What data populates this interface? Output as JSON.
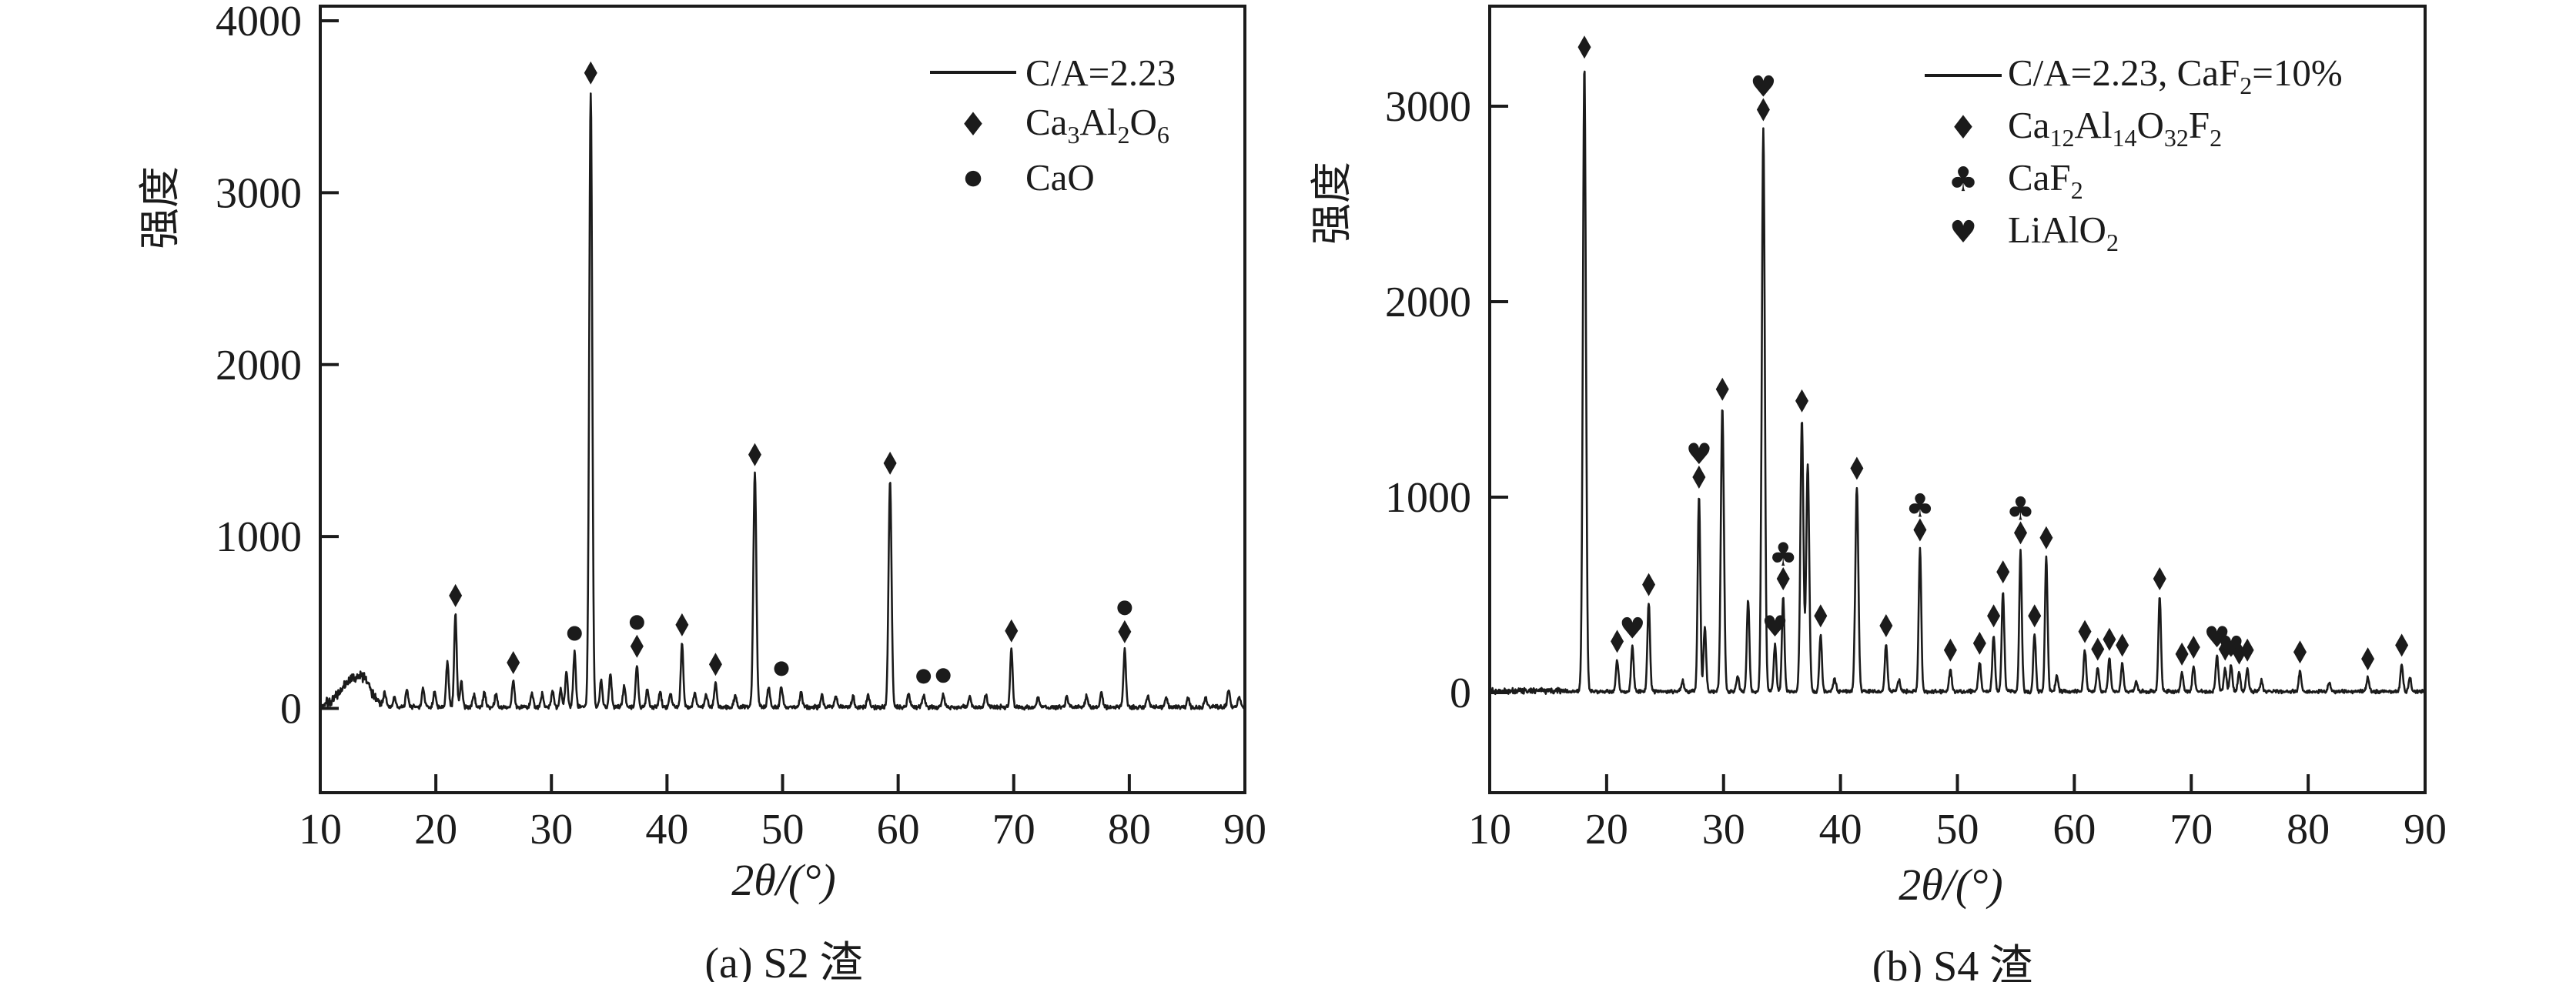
{
  "figure": {
    "background": "#ffffff",
    "ink_color": "#1b1b1b",
    "description": "Two XRD diffraction patterns side by side",
    "peaks_format": "[two_theta_deg, intensity, marker_letters(optional, bottom-to-top: d=diamond, c=circle, u=club, h=heart)]"
  },
  "chart_data": [
    {
      "type": "line",
      "title": "(a) S2 渣",
      "xlabel": "2θ/(°)",
      "ylabel": "强度",
      "xlim": [
        10,
        90
      ],
      "ylim": [
        -490,
        4085
      ],
      "xticks": [
        10,
        20,
        30,
        40,
        50,
        60,
        70,
        80,
        90
      ],
      "yticks": [
        0,
        1000,
        2000,
        3000,
        4000
      ],
      "grid": false,
      "legend_position": "upper right",
      "legend": [
        {
          "symbol": "line",
          "label": "C/A=2.23",
          "label_parts": [
            {
              "t": "C/A=2.23"
            }
          ]
        },
        {
          "symbol": "diamond",
          "label": "Ca₃Al₂O₆",
          "label_parts": [
            {
              "t": "Ca"
            },
            {
              "t": "3",
              "sub": true
            },
            {
              "t": "Al"
            },
            {
              "t": "2",
              "sub": true
            },
            {
              "t": "O"
            },
            {
              "t": "6",
              "sub": true
            }
          ]
        },
        {
          "symbol": "circle",
          "label": "CaO",
          "label_parts": [
            {
              "t": "CaO"
            }
          ]
        }
      ],
      "noise_amplitude": 24,
      "noise_boost": {
        "from": 10.4,
        "to": 15.6,
        "factor": 2.4
      },
      "humps": [
        {
          "x": 12.9,
          "h": 140,
          "w": 1.1
        },
        {
          "x": 13.8,
          "h": 60,
          "w": 0.5
        }
      ],
      "peaks": [
        [
          15.6,
          70
        ],
        [
          16.4,
          60
        ],
        [
          17.5,
          100
        ],
        [
          18.9,
          110
        ],
        [
          19.9,
          90
        ],
        [
          21.0,
          260
        ],
        [
          21.7,
          540,
          "d"
        ],
        [
          22.2,
          150
        ],
        [
          23.3,
          70
        ],
        [
          24.2,
          90
        ],
        [
          25.2,
          75
        ],
        [
          26.7,
          150,
          "d"
        ],
        [
          28.3,
          85
        ],
        [
          29.2,
          75
        ],
        [
          30.1,
          90
        ],
        [
          30.8,
          100
        ],
        [
          31.3,
          200
        ],
        [
          32.0,
          320,
          "c"
        ],
        [
          33.4,
          3580,
          "d"
        ],
        [
          34.3,
          160
        ],
        [
          35.1,
          190
        ],
        [
          36.3,
          120
        ],
        [
          37.4,
          245,
          "dc"
        ],
        [
          38.3,
          100
        ],
        [
          39.4,
          90
        ],
        [
          40.3,
          80
        ],
        [
          41.3,
          370,
          "d"
        ],
        [
          42.4,
          80
        ],
        [
          43.4,
          70
        ],
        [
          44.2,
          140,
          "d"
        ],
        [
          45.9,
          70
        ],
        [
          47.6,
          1360,
          "d"
        ],
        [
          48.8,
          120
        ],
        [
          49.9,
          115,
          "c"
        ],
        [
          51.6,
          85
        ],
        [
          53.4,
          70
        ],
        [
          54.6,
          65
        ],
        [
          56.1,
          60
        ],
        [
          57.4,
          70
        ],
        [
          59.3,
          1310,
          "d"
        ],
        [
          60.9,
          80
        ],
        [
          62.2,
          70,
          "c"
        ],
        [
          63.9,
          75,
          "c"
        ],
        [
          66.2,
          60
        ],
        [
          67.6,
          70
        ],
        [
          69.8,
          335,
          "d"
        ],
        [
          72.1,
          60
        ],
        [
          74.6,
          60
        ],
        [
          76.3,
          65
        ],
        [
          77.6,
          90
        ],
        [
          79.6,
          330,
          "dc"
        ],
        [
          81.6,
          60
        ],
        [
          83.2,
          55
        ],
        [
          85.1,
          55
        ],
        [
          86.6,
          55
        ],
        [
          88.6,
          110
        ],
        [
          89.5,
          60
        ]
      ]
    },
    {
      "type": "line",
      "title": "(b) S4 渣",
      "xlabel": "2θ/(°)",
      "ylabel": "强度",
      "xlim": [
        10,
        90
      ],
      "ylim": [
        -512,
        3512
      ],
      "xticks": [
        10,
        20,
        30,
        40,
        50,
        60,
        70,
        80,
        90
      ],
      "yticks": [
        0,
        1000,
        2000,
        3000
      ],
      "grid": false,
      "legend_position": "upper right",
      "legend": [
        {
          "symbol": "line",
          "label": "C/A=2.23, CaF₂=10%",
          "label_parts": [
            {
              "t": "C/A=2.23, CaF"
            },
            {
              "t": "2",
              "sub": true
            },
            {
              "t": "=10%"
            }
          ]
        },
        {
          "symbol": "diamond",
          "label": "Ca₁₂Al₁₄O₃₂F₂",
          "label_parts": [
            {
              "t": "Ca"
            },
            {
              "t": "12",
              "sub": true
            },
            {
              "t": "Al"
            },
            {
              "t": "14",
              "sub": true
            },
            {
              "t": "O"
            },
            {
              "t": "32",
              "sub": true
            },
            {
              "t": "F"
            },
            {
              "t": "2",
              "sub": true
            }
          ]
        },
        {
          "symbol": "club",
          "label": "CaF₂",
          "label_parts": [
            {
              "t": "CaF"
            },
            {
              "t": "2",
              "sub": true
            }
          ]
        },
        {
          "symbol": "heart",
          "label": "LiAlO₂",
          "label_parts": [
            {
              "t": "LiAlO"
            },
            {
              "t": "2",
              "sub": true
            }
          ]
        }
      ],
      "noise_amplitude": 18,
      "noise_boost": {
        "from": 10.2,
        "to": 16.5,
        "factor": 1.6
      },
      "humps": [],
      "peaks": [
        [
          18.1,
          3200,
          "d"
        ],
        [
          20.9,
          160,
          "d"
        ],
        [
          22.2,
          230,
          "h"
        ],
        [
          23.6,
          450,
          "d"
        ],
        [
          26.5,
          60
        ],
        [
          27.9,
          1000,
          "dh"
        ],
        [
          28.4,
          330
        ],
        [
          29.9,
          1450,
          "d"
        ],
        [
          31.2,
          80
        ],
        [
          32.1,
          470
        ],
        [
          33.4,
          2880,
          "dh"
        ],
        [
          34.4,
          240,
          "h"
        ],
        [
          35.1,
          480,
          "du"
        ],
        [
          36.7,
          1390,
          "d"
        ],
        [
          37.2,
          1160
        ],
        [
          38.3,
          290,
          "d"
        ],
        [
          39.5,
          70
        ],
        [
          41.4,
          1045,
          "d"
        ],
        [
          43.9,
          240,
          "d"
        ],
        [
          45.0,
          60
        ],
        [
          46.8,
          730,
          "du"
        ],
        [
          49.4,
          115,
          "d"
        ],
        [
          51.9,
          150,
          "d"
        ],
        [
          53.1,
          290,
          "d"
        ],
        [
          53.9,
          515,
          "d"
        ],
        [
          55.4,
          715,
          "du"
        ],
        [
          56.6,
          290,
          "d"
        ],
        [
          57.6,
          690,
          "d"
        ],
        [
          58.5,
          80
        ],
        [
          60.9,
          210,
          "d"
        ],
        [
          62.0,
          120,
          "d"
        ],
        [
          63.0,
          170,
          "d"
        ],
        [
          64.1,
          140,
          "d"
        ],
        [
          65.3,
          50
        ],
        [
          67.3,
          480,
          "d"
        ],
        [
          69.2,
          95,
          "d"
        ],
        [
          70.2,
          130,
          "d"
        ],
        [
          72.2,
          185,
          "h"
        ],
        [
          72.9,
          120,
          "d"
        ],
        [
          73.4,
          135,
          "h"
        ],
        [
          74.1,
          100,
          "d"
        ],
        [
          74.8,
          115,
          "d"
        ],
        [
          76.0,
          55
        ],
        [
          79.3,
          105,
          "d"
        ],
        [
          81.8,
          50
        ],
        [
          85.1,
          70,
          "d"
        ],
        [
          88.0,
          140,
          "d"
        ],
        [
          88.7,
          70
        ]
      ]
    }
  ]
}
